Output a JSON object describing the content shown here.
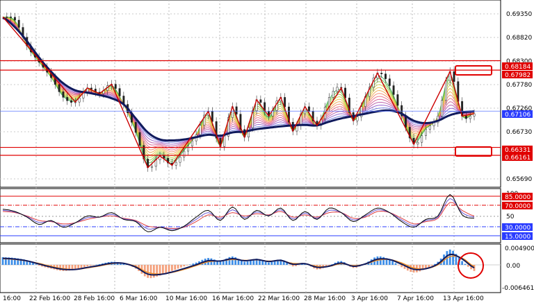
{
  "price_axis": {
    "labels": [
      "0.69350",
      "0.68820",
      "0.68300",
      "0.67780",
      "0.67260",
      "0.66730",
      "0.65690"
    ],
    "tags": {
      "upper_resistance": "0.68184",
      "lower_resistance": "0.67982",
      "current_price": "0.67106",
      "upper_support": "0.66331",
      "lower_support": "0.66161"
    }
  },
  "oscillator_axis": {
    "labels": [
      "100",
      "50"
    ],
    "tags": {
      "level_85": "85.0000",
      "level_70": "70.0000",
      "level_30": "30.0000",
      "level_15": "15.0000"
    }
  },
  "histogram_axis": {
    "labels": [
      "0.0049007",
      "0.00",
      "-0.0064613"
    ]
  },
  "time_axis": {
    "labels": [
      "16:00",
      "22 Feb 16:00",
      "28 Feb 16:00",
      "6 Mar 16:00",
      "10 Mar 16:00",
      "16 Mar 16:00",
      "22 Mar 16:00",
      "28 Mar 16:00",
      "3 Apr 16:00",
      "7 Apr 16:00",
      "13 Apr 16:00"
    ]
  },
  "colors": {
    "resistance_line": "#e00000",
    "current_price_line": "#5a78ff",
    "tag_red": "#e00000",
    "tag_blue": "#2a3cff",
    "main_ma": "#101a5c",
    "zigzag": "#cc0000",
    "hist_positive": "#3d8ee8",
    "hist_negative": "#f4a07c",
    "signal_line": "#f08c1e"
  },
  "chart_data": [
    {
      "type": "line",
      "description_source": "main price panel (candles + MA ribbon + zigzag)",
      "price_points": [
        0.6912,
        0.6905,
        0.685,
        0.6815,
        0.6782,
        0.674,
        0.673,
        0.676,
        0.6748,
        0.6768,
        0.6725,
        0.6665,
        0.659,
        0.6615,
        0.6595,
        0.6625,
        0.666,
        0.671,
        0.6635,
        0.672,
        0.6655,
        0.6735,
        0.67,
        0.674,
        0.6668,
        0.672,
        0.668,
        0.674,
        0.676,
        0.669,
        0.6742,
        0.6792,
        0.6765,
        0.67,
        0.664,
        0.6672,
        0.67,
        0.6795,
        0.67,
        0.6705
      ],
      "main_ma_points": [
        0.691,
        0.689,
        0.686,
        0.6825,
        0.6795,
        0.677,
        0.6755,
        0.675,
        0.6745,
        0.6738,
        0.6725,
        0.6695,
        0.6665,
        0.665,
        0.6648,
        0.665,
        0.6655,
        0.666,
        0.6658,
        0.6665,
        0.6667,
        0.6672,
        0.6675,
        0.6678,
        0.668,
        0.6681,
        0.668,
        0.6688,
        0.6695,
        0.67,
        0.6705,
        0.671,
        0.6712,
        0.6705,
        0.669,
        0.6685,
        0.669,
        0.6702,
        0.6708,
        0.671
      ],
      "levels": [
        0.68184,
        0.67982,
        0.67106,
        0.66331,
        0.66161
      ],
      "ylim": [
        0.6548,
        0.6948
      ]
    },
    {
      "type": "line",
      "description_source": "stochastic-style oscillator panel",
      "k_points": [
        62,
        58,
        48,
        35,
        42,
        30,
        38,
        50,
        48,
        56,
        44,
        40,
        22,
        30,
        24,
        32,
        48,
        60,
        42,
        66,
        44,
        60,
        50,
        64,
        42,
        58,
        44,
        64,
        56,
        40,
        52,
        64,
        56,
        40,
        30,
        44,
        50,
        88,
        52,
        46
      ],
      "d_points": [
        58,
        56,
        50,
        42,
        40,
        36,
        38,
        44,
        48,
        50,
        46,
        42,
        32,
        30,
        28,
        30,
        40,
        52,
        48,
        56,
        50,
        54,
        52,
        58,
        48,
        52,
        48,
        56,
        56,
        46,
        48,
        58,
        56,
        46,
        36,
        40,
        46,
        74,
        60,
        50
      ],
      "levels": [
        85,
        70,
        30,
        15
      ],
      "ylim": [
        0,
        100
      ]
    },
    {
      "type": "bar",
      "description_source": "MACD-style histogram panel",
      "hist_values": [
        0.002,
        0.0018,
        0.0012,
        -0.0002,
        -0.001,
        -0.0016,
        -0.0012,
        -0.0004,
        0.0002,
        0.0008,
        0.0004,
        -0.001,
        -0.0034,
        -0.0028,
        -0.0016,
        -0.0004,
        0.0006,
        0.0018,
        0.001,
        0.0022,
        0.0008,
        0.0016,
        0.0006,
        0.0014,
        -0.0004,
        0.0004,
        -0.0012,
        -0.0002,
        0.001,
        -0.0008,
        0.0004,
        0.0022,
        0.0014,
        -0.0006,
        -0.002,
        -0.001,
        0.0008,
        0.004,
        0.001,
        -0.0016
      ],
      "signal_points": [
        0.0016,
        0.0014,
        0.001,
        0.0004,
        -0.0004,
        -0.001,
        -0.0012,
        -0.0008,
        -0.0003,
        0.0003,
        0.0004,
        -0.0004,
        -0.002,
        -0.0024,
        -0.002,
        -0.0012,
        -0.0002,
        0.0008,
        0.001,
        0.0014,
        0.0012,
        0.0013,
        0.001,
        0.0011,
        0.0004,
        0.0003,
        -0.0004,
        -0.0004,
        0.0003,
        -0.0002,
        0.0002,
        0.0012,
        0.0014,
        0.0005,
        -0.0008,
        -0.001,
        0.0,
        0.0022,
        0.0018,
        -0.0004
      ],
      "ylim": [
        -0.0064613,
        0.0049007
      ]
    }
  ]
}
